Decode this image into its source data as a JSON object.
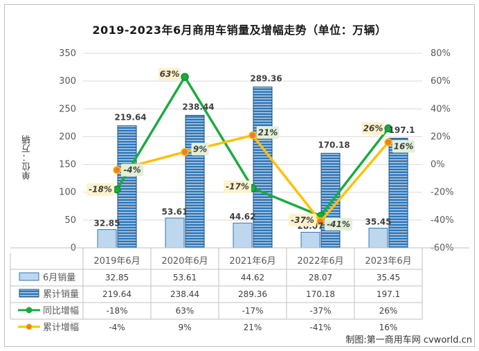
{
  "title": "2019-2023年6月商用车销量及增幅走势（单位：万辆）",
  "credit": "制图:第一商用车网 cvworld.cn",
  "colors": {
    "monthly_bar_fill": "#bdd7ee",
    "monthly_bar_stroke": "#2e75b6",
    "cumulative_bar_fill": "#2e75b6",
    "cumulative_bar_stroke": "#1f4e79",
    "yoy_line": "#1aab40",
    "cum_growth_line": "#ffc000",
    "cum_growth_marker": "#ed7d31",
    "growth_label_fill_yoy": "#fff2cc",
    "growth_label_fill_cum": "#e2f0d9"
  },
  "chart_data": {
    "type": "bar",
    "title": "2019-2023年6月商用车销量及增幅走势（单位：万辆）",
    "ylabel": "单位：万辆",
    "ylim": [
      0,
      350
    ],
    "y2lim": [
      -60,
      80
    ],
    "yticks": [
      "0",
      "50",
      "100",
      "150",
      "200",
      "250",
      "300",
      "350"
    ],
    "y2ticks": [
      "-60%",
      "-40%",
      "-20%",
      "0%",
      "20%",
      "40%",
      "60%",
      "80%"
    ],
    "categories": [
      "2019年6月",
      "2020年6月",
      "2021年6月",
      "2022年6月",
      "2023年6月"
    ],
    "grid": true,
    "legend": "data-table",
    "series": [
      {
        "name": "6月销量",
        "kind": "bar",
        "values": [
          32.85,
          53.61,
          44.62,
          28.07,
          35.45
        ],
        "labels": [
          "32.85",
          "53.61",
          "44.62",
          "28.07",
          "35.45"
        ]
      },
      {
        "name": "累计销量",
        "kind": "bar",
        "values": [
          219.64,
          238.44,
          289.36,
          170.18,
          197.1
        ],
        "labels": [
          "219.64",
          "238.44",
          "289.36",
          "170.18",
          "197.1"
        ]
      },
      {
        "name": "同比增幅",
        "kind": "line",
        "axis": "right",
        "values": [
          -18,
          63,
          -17,
          -37,
          26
        ],
        "labels": [
          "-18%",
          "63%",
          "-17%",
          "-37%",
          "26%"
        ]
      },
      {
        "name": "累计增幅",
        "kind": "line",
        "axis": "right",
        "values": [
          -4,
          9,
          21,
          -41,
          16
        ],
        "labels": [
          "-4%",
          "9%",
          "21%",
          "-41%",
          "16%"
        ]
      }
    ]
  }
}
